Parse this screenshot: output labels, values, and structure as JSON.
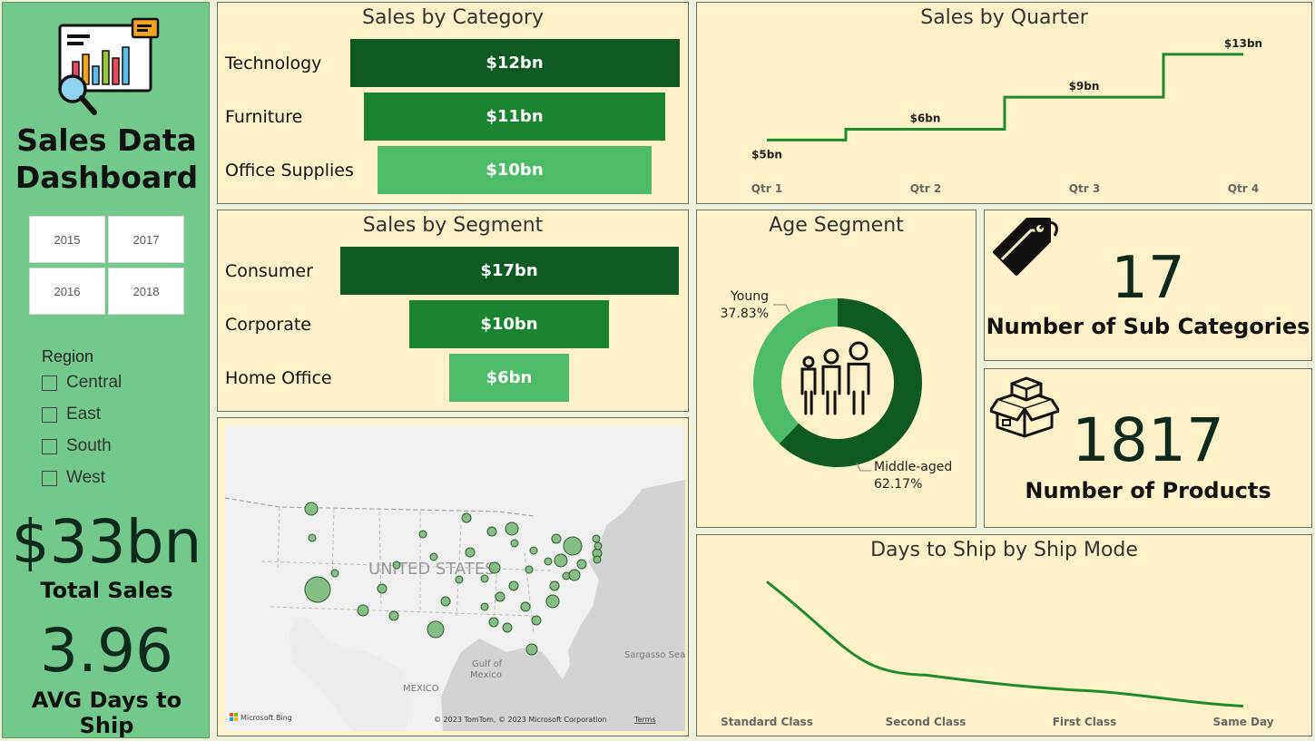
{
  "sidebar": {
    "title_line1": "Sales Data",
    "title_line2": "Dashboard",
    "years": [
      "2015",
      "2017",
      "2016",
      "2018"
    ],
    "region_title": "Region",
    "regions": [
      "Central",
      "East",
      "South",
      "West"
    ],
    "total_sales_value": "$33bn",
    "total_sales_label": "Total Sales",
    "avg_ship_value": "3.96",
    "avg_ship_label": "AVG Days to Ship"
  },
  "colors": {
    "dark_green": "#0f5a22",
    "mid_green": "#1b8431",
    "light_green": "#4dbb68",
    "line_green": "#1f8a2e",
    "panel_bg": "#fcf1c8",
    "sidebar_bg": "#72c98b"
  },
  "category_panel": {
    "title": "Sales by Category"
  },
  "segment_panel": {
    "title": "Sales by Segment"
  },
  "quarter_panel": {
    "title": "Sales by Quarter"
  },
  "age_panel": {
    "title": "Age Segment"
  },
  "ship_panel": {
    "title": "Days to Ship by Ship Mode"
  },
  "subcat_card": {
    "value": "17",
    "label": "Number of Sub Categories",
    "icon": "tag-icon"
  },
  "products_card": {
    "value": "1817",
    "label": "Number of Products",
    "icon": "box-icon"
  },
  "map": {
    "label_country": "UNITED STATES",
    "label_sea": "Sargasso Sea",
    "label_gulf_1": "Gulf of",
    "label_gulf_2": "Mexico",
    "label_mexico": "MEXICO",
    "attribution": "Microsoft Bing",
    "copyright": "© 2023 TomTom, © 2023 Microsoft Corporation",
    "terms": "Terms"
  },
  "chart_data": [
    {
      "type": "bar",
      "title": "Sales by Category",
      "categories": [
        "Technology",
        "Furniture",
        "Office Supplies"
      ],
      "values": [
        12,
        11,
        10
      ],
      "value_labels": [
        "$12bn",
        "$11bn",
        "$10bn"
      ],
      "unit": "bn",
      "colors": [
        "#0f5a22",
        "#1b8431",
        "#4dbb68"
      ]
    },
    {
      "type": "bar",
      "title": "Sales by Segment",
      "categories": [
        "Consumer",
        "Corporate",
        "Home Office"
      ],
      "values": [
        17,
        10,
        6
      ],
      "value_labels": [
        "$17bn",
        "$10bn",
        "$6bn"
      ],
      "unit": "bn",
      "colors": [
        "#0f5a22",
        "#1b8431",
        "#4dbb68"
      ]
    },
    {
      "type": "line",
      "title": "Sales by Quarter",
      "categories": [
        "Qtr 1",
        "Qtr 2",
        "Qtr 3",
        "Qtr 4"
      ],
      "values": [
        5,
        6,
        9,
        13
      ],
      "value_labels": [
        "$5bn",
        "$6bn",
        "$9bn",
        "$13bn"
      ],
      "step": true
    },
    {
      "type": "pie",
      "title": "Age Segment",
      "labels": [
        "Young",
        "Middle-aged"
      ],
      "values": [
        37.83,
        62.17
      ],
      "value_labels": [
        "37.83%",
        "62.17%"
      ],
      "colors": [
        "#4dbb68",
        "#0f5a22"
      ],
      "donut": true
    },
    {
      "type": "line",
      "title": "Days to Ship by Ship Mode",
      "categories": [
        "Standard Class",
        "Second Class",
        "First Class",
        "Same Day"
      ],
      "values": [
        5.0,
        3.2,
        2.9,
        2.6
      ],
      "ylim": [
        2.4,
        5.2
      ]
    }
  ]
}
